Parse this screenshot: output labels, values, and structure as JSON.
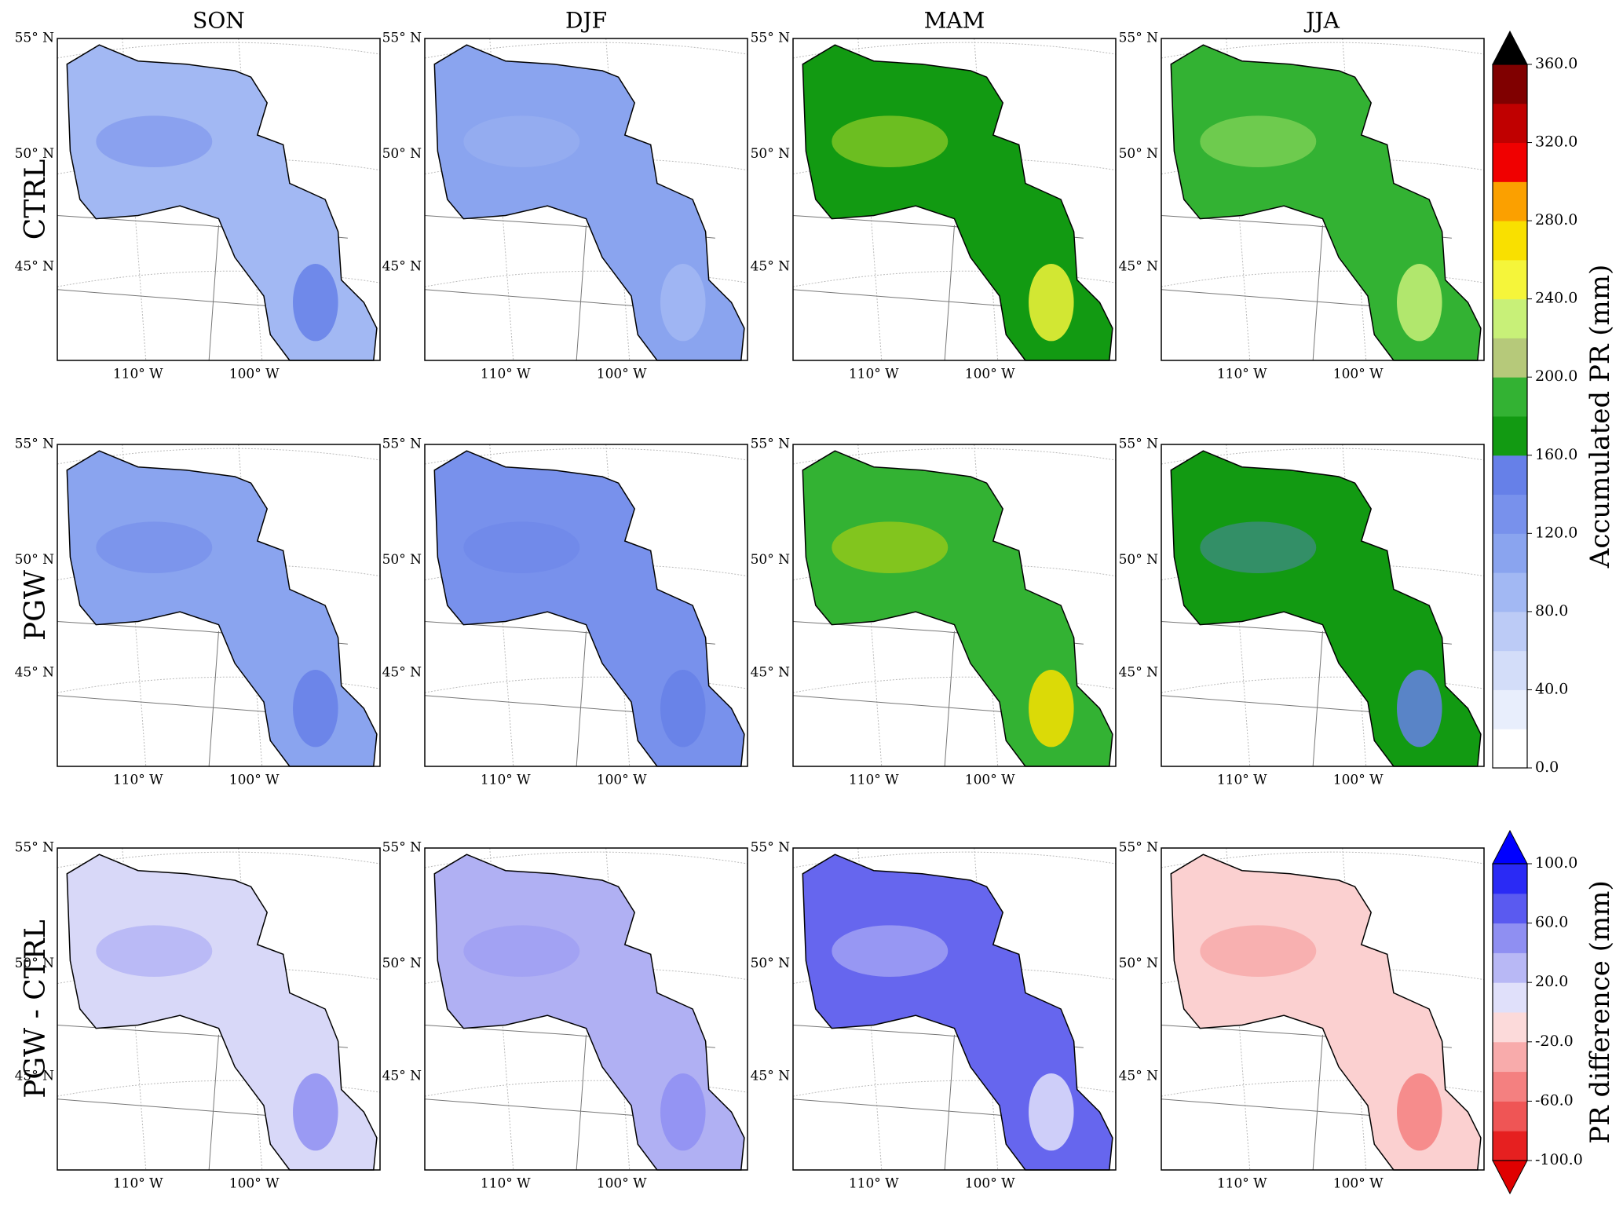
{
  "columns": [
    "SON",
    "DJF",
    "MAM",
    "JJA"
  ],
  "rows": [
    "CTRL",
    "PGW",
    "PGW - CTRL"
  ],
  "lat_labels": [
    "55° N",
    "50° N",
    "45° N"
  ],
  "lon_labels": [
    "110° W",
    "100° W"
  ],
  "colorbars": [
    {
      "label": "Accumulated PR (mm)",
      "lim": [
        0,
        360
      ],
      "extend_color": "#000000",
      "colors": [
        "#ffffff",
        "#e8eefc",
        "#d3ddf9",
        "#bccbf6",
        "#a2b8f3",
        "#8aa4ef",
        "#7891ec",
        "#6680e8",
        "#129a12",
        "#33b233",
        "#b6c97a",
        "#c8f078",
        "#f5f53a",
        "#f9e000",
        "#fba000",
        "#f00000",
        "#c00000",
        "#800000"
      ],
      "ticks": [
        {
          "value": 0,
          "label": "0.0"
        },
        {
          "value": 40,
          "label": "40.0"
        },
        {
          "value": 80,
          "label": "80.0"
        },
        {
          "value": 120,
          "label": "120.0"
        },
        {
          "value": 160,
          "label": "160.0"
        },
        {
          "value": 200,
          "label": "200.0"
        },
        {
          "value": 240,
          "label": "240.0"
        },
        {
          "value": 280,
          "label": "280.0"
        },
        {
          "value": 320,
          "label": "320.0"
        },
        {
          "value": 360,
          "label": "360.0"
        }
      ]
    },
    {
      "label": "PR difference (mm)",
      "lim": [
        -100,
        100
      ],
      "extend_low_color": "#e00000",
      "extend_high_color": "#0000ff",
      "colors": [
        "#e62020",
        "#ef5555",
        "#f48080",
        "#f8abab",
        "#fcdada",
        "#e0e0fa",
        "#b8b8f5",
        "#8f8ff2",
        "#5a5af0",
        "#2a2af5"
      ],
      "ticks": [
        {
          "value": -100,
          "label": "-100.0"
        },
        {
          "value": -60,
          "label": "-60.0"
        },
        {
          "value": -20,
          "label": "-20.0"
        },
        {
          "value": 20,
          "label": "20.0"
        },
        {
          "value": 60,
          "label": "60.0"
        },
        {
          "value": 100,
          "label": "100.0"
        }
      ]
    }
  ]
}
